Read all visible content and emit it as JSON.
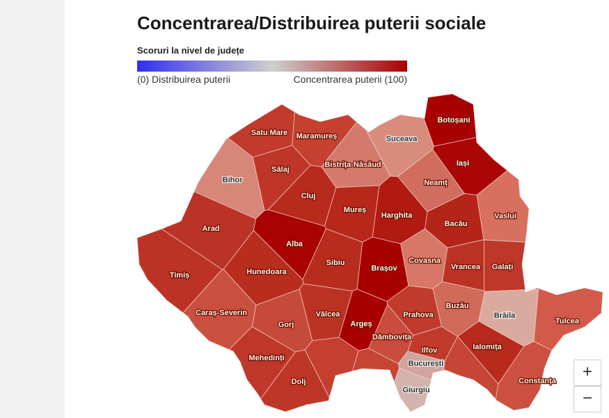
{
  "title": "Concentrarea/Distribuirea puterii sociale",
  "legend": {
    "title": "Scoruri la nivel de județe",
    "min_label": "(0) Distribuirea puterii",
    "max_label": "Concentrarea puterii (100)",
    "colors": [
      "#2f2fee",
      "#cfcfcf",
      "#a80000"
    ]
  },
  "counties": [
    {
      "name": "Satu Mare",
      "color": "#c23a2c"
    },
    {
      "name": "Maramureș",
      "color": "#c4402f"
    },
    {
      "name": "Suceava",
      "color": "#d98c7c"
    },
    {
      "name": "Botoșani",
      "color": "#a80000"
    },
    {
      "name": "Sălaj",
      "color": "#bf3628"
    },
    {
      "name": "Bistrița-Năsăud",
      "color": "#d47a6b"
    },
    {
      "name": "Bihor",
      "color": "#d8857a"
    },
    {
      "name": "Cluj",
      "color": "#b82a1c"
    },
    {
      "name": "Iași",
      "color": "#ab0606"
    },
    {
      "name": "Neamț",
      "color": "#d06d5f"
    },
    {
      "name": "Mureș",
      "color": "#b8281a"
    },
    {
      "name": "Harghita",
      "color": "#b11a10"
    },
    {
      "name": "Vaslui",
      "color": "#d7705f"
    },
    {
      "name": "Bacău",
      "color": "#b52418"
    },
    {
      "name": "Arad",
      "color": "#bb3326"
    },
    {
      "name": "Alba",
      "color": "#a80202"
    },
    {
      "name": "Sibiu",
      "color": "#b82c1e"
    },
    {
      "name": "Covasna",
      "color": "#d67767"
    },
    {
      "name": "Brașov",
      "color": "#a80000"
    },
    {
      "name": "Vrancea",
      "color": "#bb3225"
    },
    {
      "name": "Galați",
      "color": "#bf3728"
    },
    {
      "name": "Hunedoara",
      "color": "#b92d1f"
    },
    {
      "name": "Timiș",
      "color": "#bc3326"
    },
    {
      "name": "Caraș-Severin",
      "color": "#c9503f"
    },
    {
      "name": "Gorj",
      "color": "#c64a3a"
    },
    {
      "name": "Vâlcea",
      "color": "#bb3223"
    },
    {
      "name": "Argeș",
      "color": "#a80000"
    },
    {
      "name": "Prahova",
      "color": "#c13b2c"
    },
    {
      "name": "Buzău",
      "color": "#d06a59"
    },
    {
      "name": "Brăila",
      "color": "#dbaa9f"
    },
    {
      "name": "Tulcea",
      "color": "#d15a4b"
    },
    {
      "name": "Dâmbovița",
      "color": "#c94c3d"
    },
    {
      "name": "Ilfov",
      "color": "#c13a2c"
    },
    {
      "name": "Ialomița",
      "color": "#b82a1c"
    },
    {
      "name": "Mehedinți",
      "color": "#bf3729"
    },
    {
      "name": "București",
      "color": "#cfa59c"
    },
    {
      "name": "Constanța",
      "color": "#cc5040"
    },
    {
      "name": "Dolj",
      "color": "#be3627"
    },
    {
      "name": "Giurgiu",
      "color": "#d2b4ad"
    },
    {
      "name": null,
      "color": "#c43f30"
    },
    {
      "name": null,
      "color": "#c54434"
    },
    {
      "name": null,
      "color": "#c64536"
    }
  ],
  "controls": {
    "zoom_in": "+",
    "zoom_out": "−"
  }
}
